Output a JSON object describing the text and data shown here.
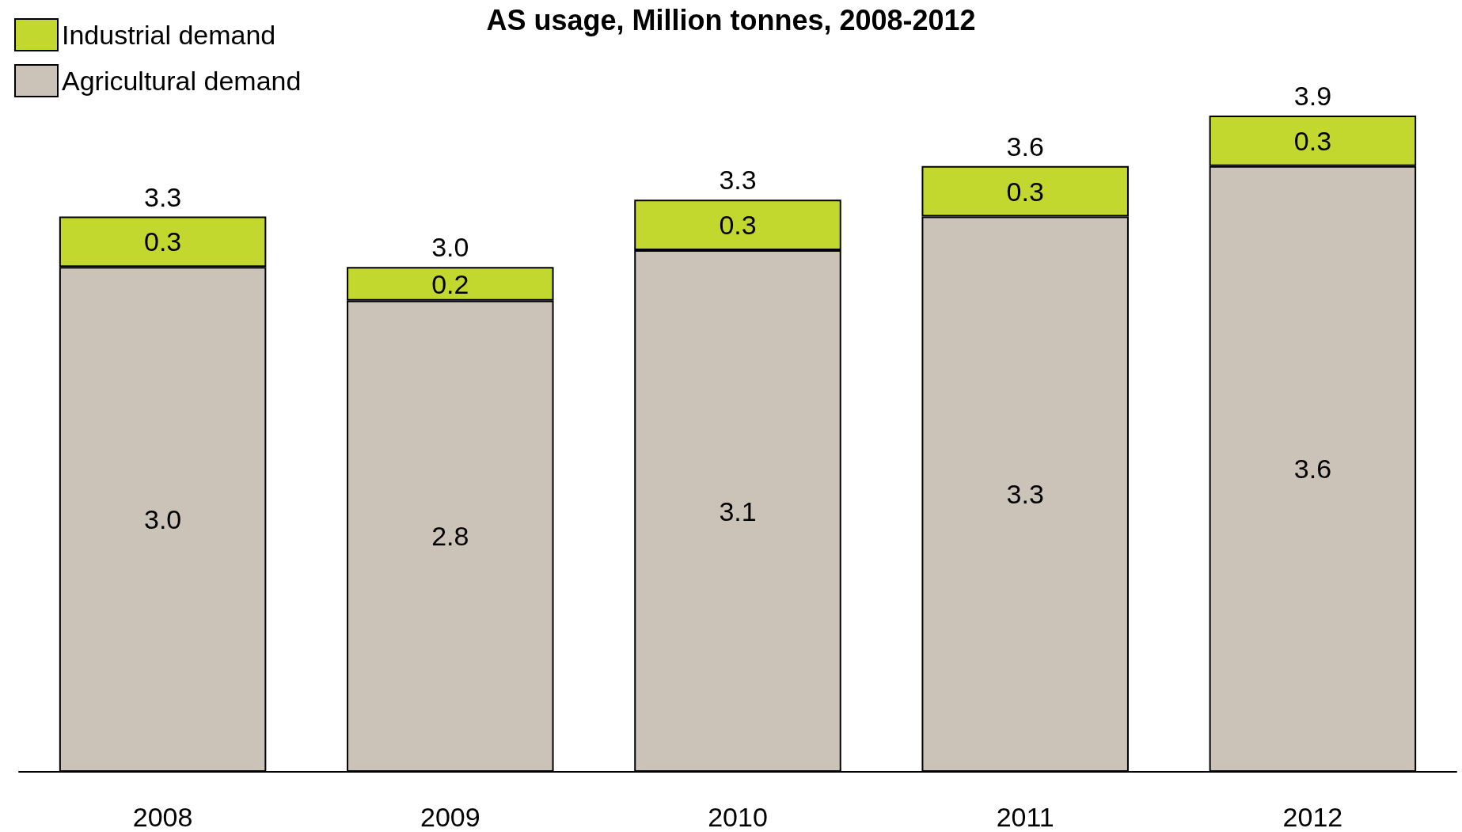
{
  "chart_data": {
    "type": "bar",
    "title": "AS usage, Million tonnes, 2008-2012",
    "categories": [
      "2008",
      "2009",
      "2010",
      "2011",
      "2012"
    ],
    "series": [
      {
        "name": "Agricultural demand",
        "color": "#cbc2b8",
        "values": [
          3.0,
          2.8,
          3.1,
          3.3,
          3.6
        ],
        "value_labels": [
          "3.0",
          "2.8",
          "3.1",
          "3.3",
          "3.6"
        ]
      },
      {
        "name": "Industrial demand",
        "color": "#c3d82f",
        "values": [
          0.3,
          0.2,
          0.3,
          0.3,
          0.3
        ],
        "value_labels": [
          "0.3",
          "0.2",
          "0.3",
          "0.3",
          "0.3"
        ]
      }
    ],
    "stacked": true,
    "totals": [
      "3.3",
      "3.0",
      "3.3",
      "3.6",
      "3.9"
    ],
    "legend": "top left",
    "tick_labels": "x"
  }
}
